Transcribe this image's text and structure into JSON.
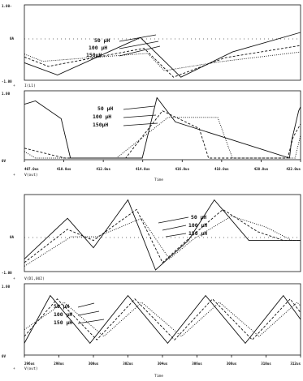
{
  "chart_data": [
    {
      "type": "line",
      "panel": "top",
      "signals": [
        "I(L1)",
        "V(out)"
      ],
      "xlabel": "Time",
      "x_tick_labels": [
        "407.0us",
        "410.0us",
        "412.0us",
        "414.0us",
        "416.0us",
        "418.0us",
        "420.0us",
        "422.0us"
      ],
      "xlim": [
        407,
        422
      ],
      "legend_traces": [
        "50 µH",
        "100 µH",
        "150µH"
      ],
      "series": [
        {
          "name": "50 µH",
          "subplot": "upper",
          "x": [
            407,
            408.8,
            413.3,
            415.5,
            418.3,
            422
          ],
          "y": [
            0.22,
            0.05,
            0.57,
            0.02,
            0.37,
            0.64
          ]
        },
        {
          "name": "100 µH",
          "subplot": "upper",
          "x": [
            407,
            408.3,
            413.5,
            415.1,
            417.9,
            422
          ],
          "y": [
            0.3,
            0.17,
            0.42,
            0.02,
            0.29,
            0.46
          ]
        },
        {
          "name": "150µH",
          "subplot": "upper",
          "x": [
            407,
            408,
            413.7,
            414.6,
            417.5,
            422
          ],
          "y": [
            0.34,
            0.24,
            0.35,
            0.11,
            0.23,
            0.37
          ]
        },
        {
          "name": "50 µH",
          "subplot": "lower",
          "x": [
            407,
            407.6,
            409,
            409.5,
            413.4,
            414.2,
            415.2,
            421.4,
            421.5,
            421.9,
            422
          ],
          "y": [
            0.82,
            0.87,
            0.6,
            0.0,
            0.0,
            0.92,
            0.55,
            0.0,
            0.25,
            0.72,
            0.78
          ]
        },
        {
          "name": "100 µH",
          "subplot": "lower",
          "x": [
            407,
            408.9,
            409.2,
            412.5,
            414.5,
            416.5,
            417.0,
            421.3,
            421.6,
            422
          ],
          "y": [
            0.15,
            0.02,
            0.0,
            0.0,
            0.72,
            0.45,
            0.0,
            0.0,
            0.32,
            0.52
          ]
        },
        {
          "name": "150µH",
          "subplot": "lower",
          "x": [
            407,
            407.6,
            412.0,
            414.8,
            417.5,
            418.3,
            421.7,
            422
          ],
          "y": [
            0.1,
            0.0,
            0.0,
            0.62,
            0.62,
            0.0,
            0.0,
            0.35
          ]
        }
      ],
      "texts": {
        "upper_ytop": "1.00-",
        "upper_ymid": "0A",
        "upper_ybot": "-1.00",
        "upper_signal": "I(L1)",
        "lower_ytop": "1.00",
        "lower_ybot": "0V",
        "lower_signal": "V(out)",
        "upper_marker": "+",
        "lower_marker": "+"
      }
    },
    {
      "type": "line",
      "panel": "bottom",
      "signals": [
        "V(D1,0U2)",
        "V(out)"
      ],
      "xlabel": "Time",
      "x_tick_labels": [
        "296us",
        "298us",
        "300us",
        "302us",
        "304us",
        "306us",
        "308us",
        "310us",
        "312us"
      ],
      "xlim": [
        296,
        312
      ],
      "legend_traces": [
        "50 µH",
        "100 µH",
        "150 µH"
      ],
      "series": [
        {
          "name": "50 µH",
          "subplot": "upper",
          "x": [
            296,
            298.5,
            300,
            302,
            303.6,
            305.5,
            307,
            309,
            310.5,
            312
          ],
          "y": [
            0.15,
            0.7,
            0.3,
            0.95,
            0.0,
            0.4,
            0.95,
            0.4,
            0.4,
            0.4
          ]
        },
        {
          "name": "100 µH",
          "subplot": "upper",
          "x": [
            296,
            298.5,
            300,
            302.5,
            304,
            305.5,
            307.5,
            309.5,
            311,
            312
          ],
          "y": [
            0.1,
            0.55,
            0.4,
            0.82,
            0.1,
            0.42,
            0.82,
            0.52,
            0.4,
            0.4
          ]
        },
        {
          "name": "150 µH",
          "subplot": "upper",
          "x": [
            296,
            298.7,
            300.2,
            302.8,
            304.4,
            305.8,
            308,
            310,
            311.5,
            312
          ],
          "y": [
            0.05,
            0.45,
            0.45,
            0.7,
            0.15,
            0.42,
            0.73,
            0.58,
            0.4,
            0.4
          ]
        },
        {
          "name": "50 µH",
          "subplot": "lower",
          "x": [
            296,
            297.5,
            299.8,
            302,
            304.3,
            306.5,
            308.8,
            311,
            312
          ],
          "y": [
            0.15,
            0.85,
            0.15,
            0.85,
            0.15,
            0.85,
            0.15,
            0.85,
            0.5
          ]
        },
        {
          "name": "100 µH",
          "subplot": "lower",
          "x": [
            296,
            297.9,
            300.2,
            302.4,
            304.7,
            306.9,
            309.2,
            311.4,
            312
          ],
          "y": [
            0.25,
            0.8,
            0.2,
            0.8,
            0.2,
            0.8,
            0.2,
            0.8,
            0.6
          ]
        },
        {
          "name": "150 µH",
          "subplot": "lower",
          "x": [
            296,
            298.3,
            300.6,
            302.8,
            305.1,
            307.3,
            309.6,
            311.8,
            312
          ],
          "y": [
            0.35,
            0.75,
            0.25,
            0.75,
            0.25,
            0.75,
            0.25,
            0.75,
            0.7
          ]
        }
      ],
      "texts": {
        "upper_ymid": "0A",
        "upper_ybot": "-1.00",
        "upper_signal": "V(D1,0U2)",
        "lower_ytop": "1.00",
        "lower_ybot": "0V",
        "lower_signal": "V(out)",
        "upper_marker": "+",
        "lower_marker": "+"
      }
    }
  ]
}
